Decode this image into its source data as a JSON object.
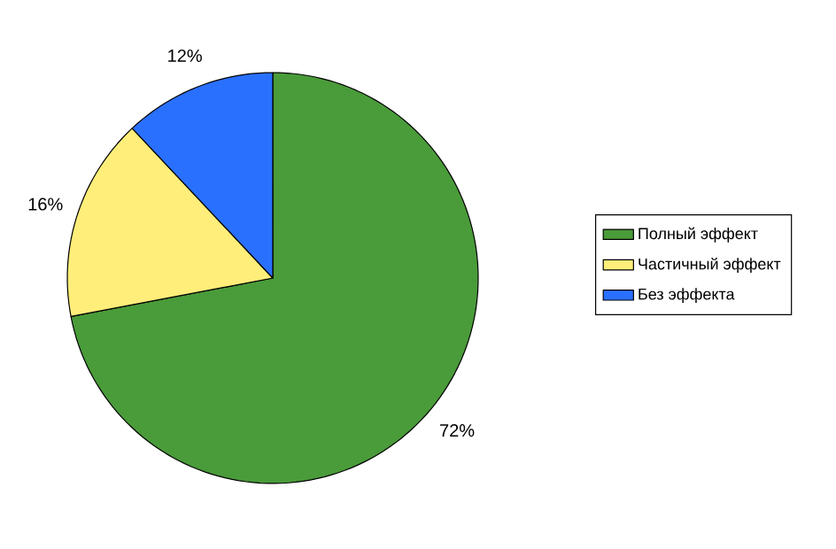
{
  "chart_data": {
    "type": "pie",
    "categories": [
      "Полный эффект",
      "Частичный эффект",
      "Без эффекта"
    ],
    "values": [
      72,
      16,
      12
    ],
    "value_labels": [
      "72%",
      "16%",
      "12%"
    ],
    "colors": [
      "#4a9b3a",
      "#ffee7a",
      "#2a70ff"
    ],
    "legend": "right"
  }
}
